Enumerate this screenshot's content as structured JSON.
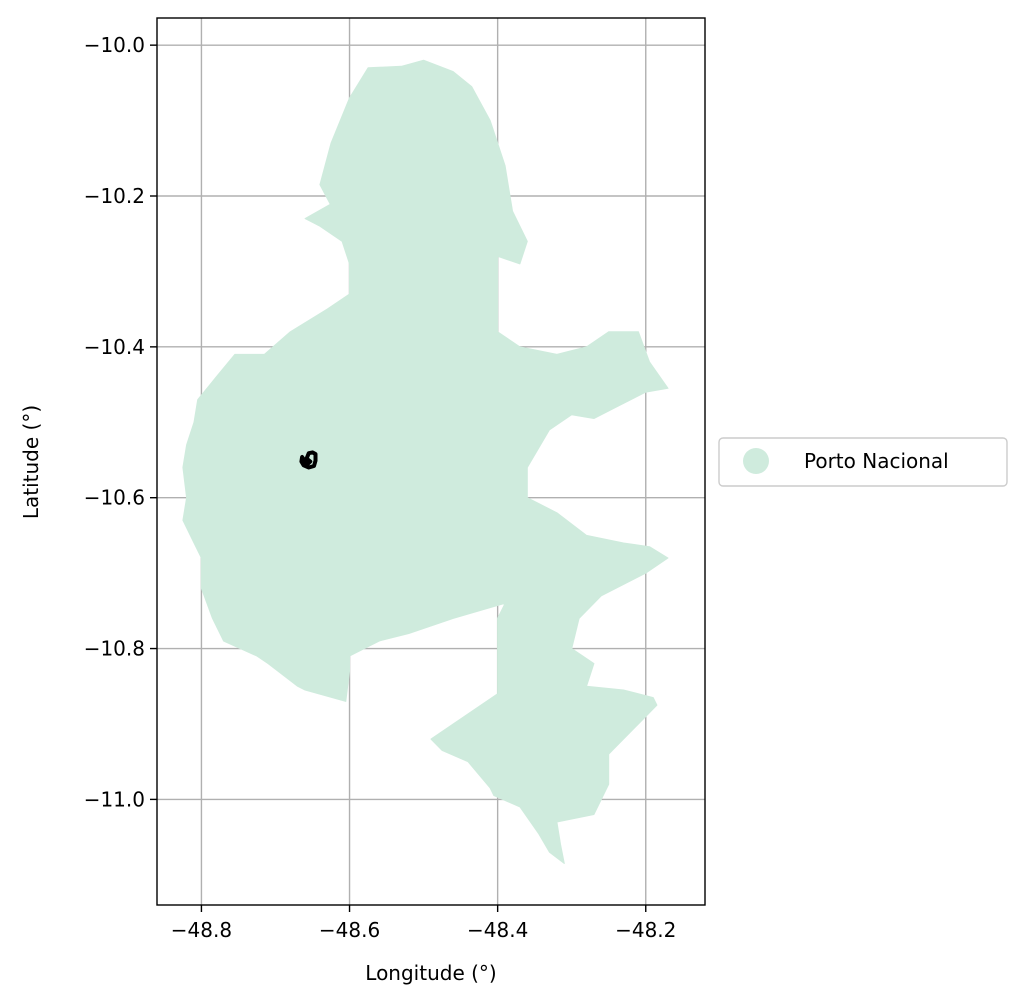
{
  "chart_data": {
    "type": "map",
    "xlabel": "Longitude (°)",
    "ylabel": "Latitude (°)",
    "xlim": [
      -48.86,
      -48.12
    ],
    "ylim": [
      -11.14,
      -9.964
    ],
    "grid": true,
    "x_ticks": [
      -48.8,
      -48.6,
      -48.4,
      -48.2
    ],
    "x_tick_labels": [
      "−48.8",
      "−48.6",
      "−48.4",
      "−48.2"
    ],
    "y_ticks": [
      -10.0,
      -10.2,
      -10.4,
      -10.6,
      -10.8,
      -11.0
    ],
    "y_tick_labels": [
      "−10.0",
      "−10.2",
      "−10.4",
      "−10.6",
      "−10.8",
      "−11.0"
    ],
    "legend": {
      "placement": "center-right outside",
      "entries": [
        {
          "label": "Porto Nacional",
          "color": "#cfebdd"
        }
      ]
    },
    "regions": [
      {
        "name": "Porto Nacional",
        "color": "#cfebdd",
        "outline": [
          [
            -48.626,
            -10.211
          ],
          [
            -48.64,
            -10.185
          ],
          [
            -48.625,
            -10.13
          ],
          [
            -48.6,
            -10.07
          ],
          [
            -48.575,
            -10.03
          ],
          [
            -48.53,
            -10.028
          ],
          [
            -48.5,
            -10.02
          ],
          [
            -48.46,
            -10.035
          ],
          [
            -48.435,
            -10.055
          ],
          [
            -48.41,
            -10.1
          ],
          [
            -48.39,
            -10.16
          ],
          [
            -48.38,
            -10.22
          ],
          [
            -48.36,
            -10.26
          ],
          [
            -48.37,
            -10.29
          ],
          [
            -48.4,
            -10.28
          ],
          [
            -48.4,
            -10.35
          ],
          [
            -48.4,
            -10.38
          ],
          [
            -48.37,
            -10.4
          ],
          [
            -48.32,
            -10.41
          ],
          [
            -48.28,
            -10.4
          ],
          [
            -48.25,
            -10.38
          ],
          [
            -48.21,
            -10.38
          ],
          [
            -48.195,
            -10.42
          ],
          [
            -48.17,
            -10.455
          ],
          [
            -48.2,
            -10.46
          ],
          [
            -48.24,
            -10.48
          ],
          [
            -48.27,
            -10.495
          ],
          [
            -48.3,
            -10.49
          ],
          [
            -48.33,
            -10.51
          ],
          [
            -48.36,
            -10.56
          ],
          [
            -48.36,
            -10.6
          ],
          [
            -48.32,
            -10.62
          ],
          [
            -48.28,
            -10.65
          ],
          [
            -48.23,
            -10.66
          ],
          [
            -48.195,
            -10.665
          ],
          [
            -48.17,
            -10.68
          ],
          [
            -48.2,
            -10.7
          ],
          [
            -48.26,
            -10.73
          ],
          [
            -48.29,
            -10.76
          ],
          [
            -48.3,
            -10.8
          ],
          [
            -48.27,
            -10.82
          ],
          [
            -48.28,
            -10.85
          ],
          [
            -48.23,
            -10.855
          ],
          [
            -48.19,
            -10.865
          ],
          [
            -48.185,
            -10.875
          ],
          [
            -48.21,
            -10.9
          ],
          [
            -48.25,
            -10.94
          ],
          [
            -48.25,
            -10.98
          ],
          [
            -48.27,
            -11.02
          ],
          [
            -48.32,
            -11.03
          ],
          [
            -48.315,
            -11.06
          ],
          [
            -48.31,
            -11.085
          ],
          [
            -48.33,
            -11.07
          ],
          [
            -48.345,
            -11.045
          ],
          [
            -48.37,
            -11.01
          ],
          [
            -48.405,
            -10.995
          ],
          [
            -48.41,
            -10.985
          ],
          [
            -48.44,
            -10.95
          ],
          [
            -48.475,
            -10.935
          ],
          [
            -48.49,
            -10.92
          ],
          [
            -48.4,
            -10.86
          ],
          [
            -48.4,
            -10.84
          ],
          [
            -48.4,
            -10.76
          ],
          [
            -48.39,
            -10.74
          ],
          [
            -48.46,
            -10.76
          ],
          [
            -48.52,
            -10.78
          ],
          [
            -48.56,
            -10.79
          ],
          [
            -48.6,
            -10.81
          ],
          [
            -48.6,
            -10.83
          ],
          [
            -48.605,
            -10.87
          ],
          [
            -48.66,
            -10.855
          ],
          [
            -48.67,
            -10.85
          ],
          [
            -48.71,
            -10.82
          ],
          [
            -48.725,
            -10.81
          ],
          [
            -48.77,
            -10.79
          ],
          [
            -48.785,
            -10.76
          ],
          [
            -48.8,
            -10.72
          ],
          [
            -48.8,
            -10.68
          ],
          [
            -48.81,
            -10.66
          ],
          [
            -48.825,
            -10.63
          ],
          [
            -48.82,
            -10.6
          ],
          [
            -48.825,
            -10.56
          ],
          [
            -48.82,
            -10.53
          ],
          [
            -48.81,
            -10.5
          ],
          [
            -48.805,
            -10.47
          ],
          [
            -48.78,
            -10.44
          ],
          [
            -48.755,
            -10.41
          ],
          [
            -48.715,
            -10.41
          ],
          [
            -48.68,
            -10.38
          ],
          [
            -48.63,
            -10.35
          ],
          [
            -48.6,
            -10.33
          ],
          [
            -48.6,
            -10.31
          ],
          [
            -48.6,
            -10.29
          ],
          [
            -48.61,
            -10.26
          ],
          [
            -48.64,
            -10.24
          ],
          [
            -48.66,
            -10.23
          ]
        ]
      }
    ],
    "features": [
      {
        "name": "small closed outline",
        "color": "#000000",
        "outline": [
          [
            -48.664,
            -10.546
          ],
          [
            -48.665,
            -10.552
          ],
          [
            -48.662,
            -10.557
          ],
          [
            -48.655,
            -10.56
          ],
          [
            -48.648,
            -10.558
          ],
          [
            -48.646,
            -10.551
          ],
          [
            -48.646,
            -10.542
          ],
          [
            -48.65,
            -10.54
          ],
          [
            -48.655,
            -10.541
          ],
          [
            -48.658,
            -10.548
          ],
          [
            -48.653,
            -10.552
          ],
          [
            -48.657,
            -10.556
          ]
        ]
      }
    ]
  }
}
